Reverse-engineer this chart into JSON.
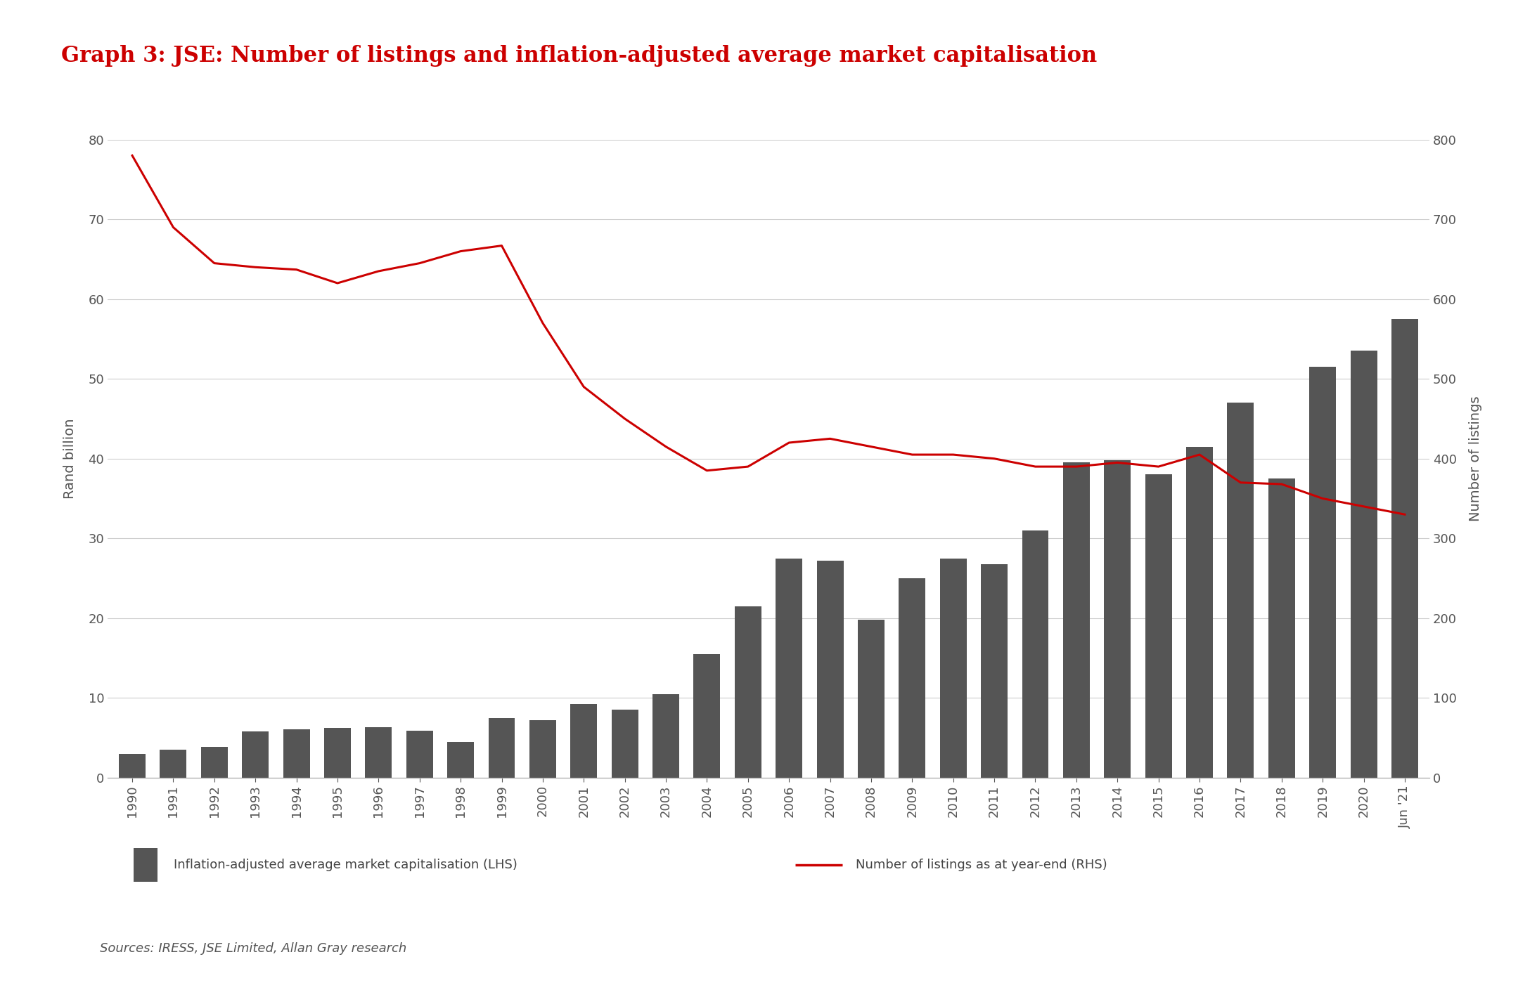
{
  "title": "Graph 3: JSE: Number of listings and inflation-adjusted average market capitalisation",
  "title_color": "#cc0000",
  "sources_text": "Sources: IRESS, JSE Limited, Allan Gray research",
  "ylabel_left": "Rand billion",
  "ylabel_right": "Number of listings",
  "background_color": "#ffffff",
  "bar_color": "#555555",
  "line_color": "#cc0000",
  "years": [
    "1990",
    "1991",
    "1992",
    "1993",
    "1994",
    "1995",
    "1996",
    "1997",
    "1998",
    "1999",
    "2000",
    "2001",
    "2002",
    "2003",
    "2004",
    "2005",
    "2006",
    "2007",
    "2008",
    "2009",
    "2010",
    "2011",
    "2012",
    "2013",
    "2014",
    "2015",
    "2016",
    "2017",
    "2018",
    "2019",
    "2020",
    "Jun '21"
  ],
  "bar_values": [
    3.0,
    3.5,
    3.9,
    5.8,
    6.1,
    6.2,
    6.3,
    5.9,
    4.5,
    7.5,
    7.2,
    9.2,
    8.5,
    10.5,
    15.5,
    21.5,
    27.5,
    27.2,
    19.8,
    25.0,
    27.5,
    26.8,
    31.0,
    39.5,
    39.8,
    38.0,
    41.5,
    47.0,
    37.5,
    51.5,
    53.5,
    57.5
  ],
  "line_values": [
    780,
    690,
    645,
    640,
    637,
    620,
    635,
    645,
    660,
    667,
    570,
    490,
    450,
    415,
    385,
    390,
    420,
    425,
    415,
    405,
    405,
    400,
    390,
    390,
    395,
    390,
    405,
    370,
    368,
    350,
    340,
    330
  ],
  "ylim_left": [
    0,
    80
  ],
  "ylim_right": [
    0,
    800
  ],
  "yticks_left": [
    0,
    10,
    20,
    30,
    40,
    50,
    60,
    70,
    80
  ],
  "yticks_right": [
    0,
    100,
    200,
    300,
    400,
    500,
    600,
    700,
    800
  ],
  "legend_label_bar": "Inflation-adjusted average market capitalisation (LHS)",
  "legend_label_line": "Number of listings as at year-end (RHS)",
  "title_fontsize": 22,
  "label_fontsize": 14,
  "tick_fontsize": 13,
  "legend_fontsize": 13,
  "sources_fontsize": 13
}
